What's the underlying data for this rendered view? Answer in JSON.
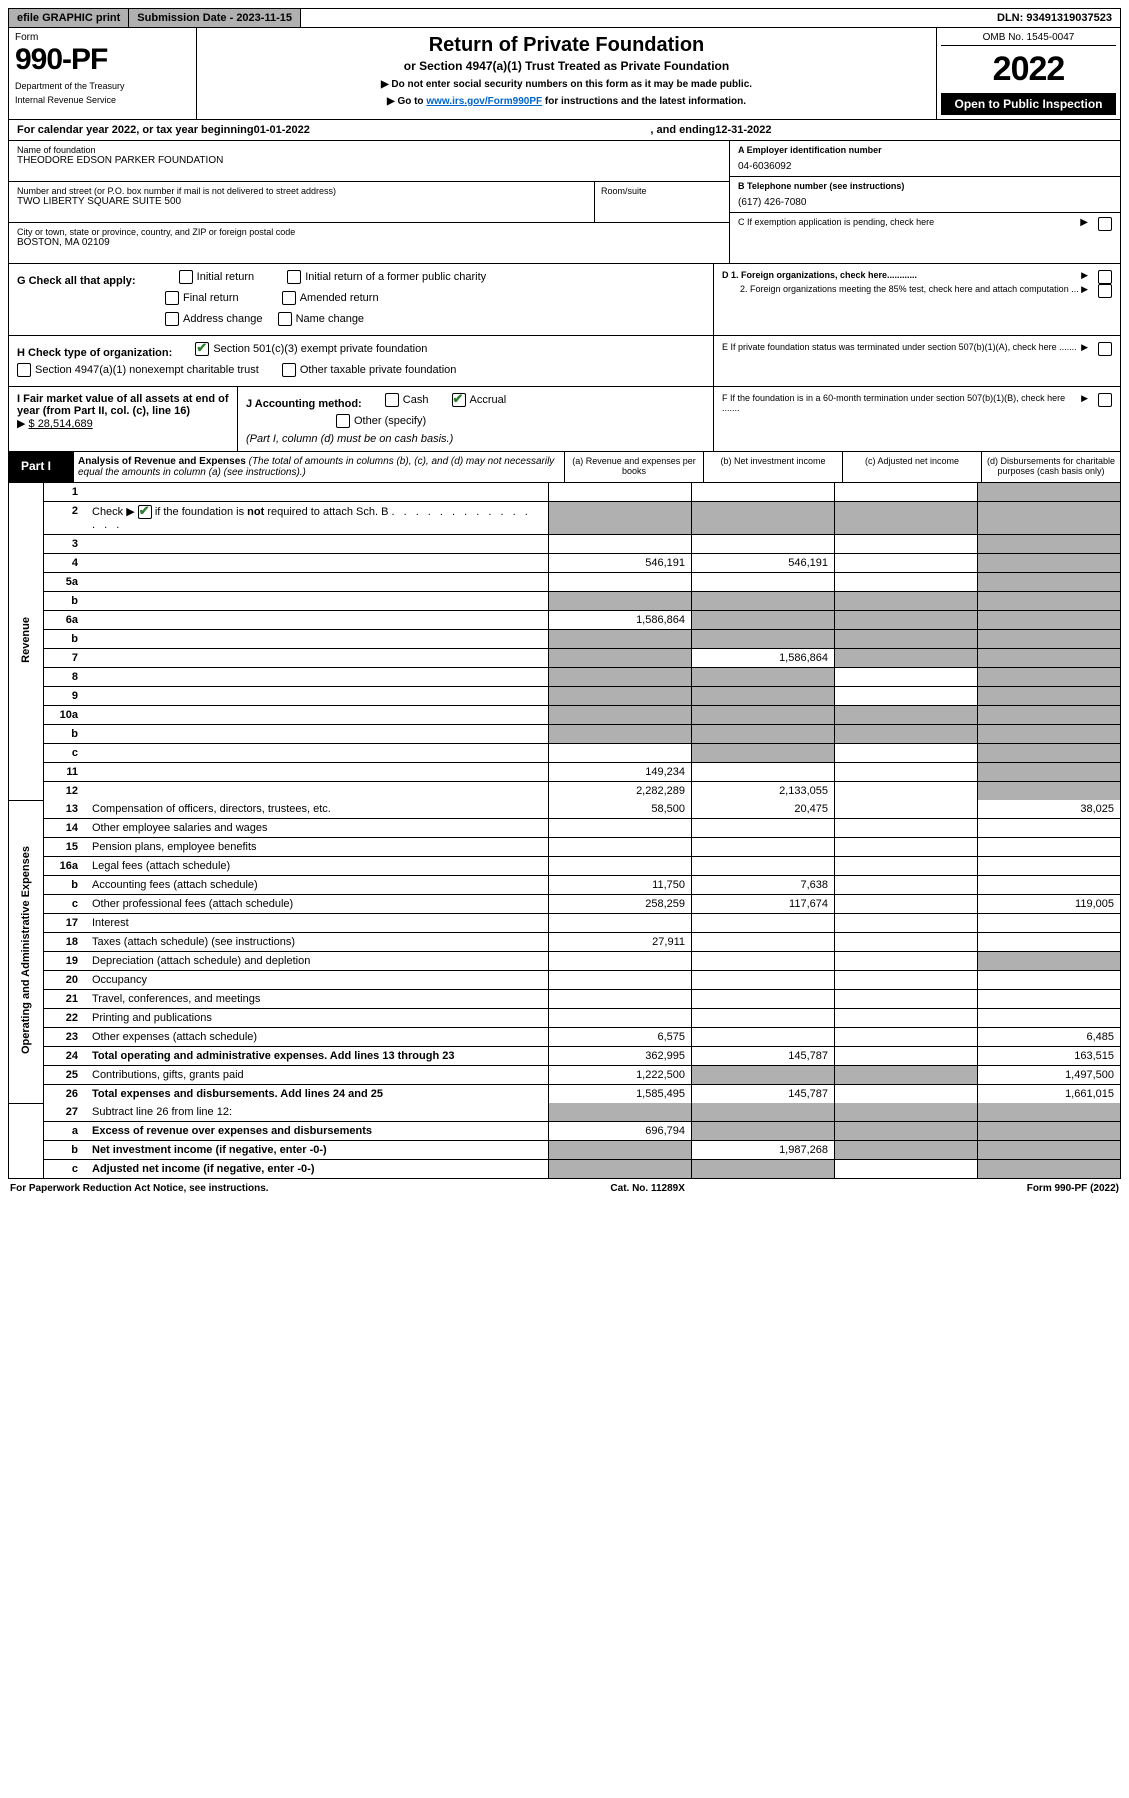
{
  "topbar": {
    "efile": "efile GRAPHIC print",
    "submission": "Submission Date - 2023-11-15",
    "dln": "DLN: 93491319037523"
  },
  "header": {
    "form_label": "Form",
    "form_number": "990-PF",
    "dept1": "Department of the Treasury",
    "dept2": "Internal Revenue Service",
    "title": "Return of Private Foundation",
    "subtitle": "or Section 4947(a)(1) Trust Treated as Private Foundation",
    "note1": "▶ Do not enter social security numbers on this form as it may be made public.",
    "note2_pre": "▶ Go to ",
    "note2_link": "www.irs.gov/Form990PF",
    "note2_post": " for instructions and the latest information.",
    "omb": "OMB No. 1545-0047",
    "year": "2022",
    "inspect": "Open to Public Inspection"
  },
  "calrow": {
    "pre": "For calendar year 2022, or tax year beginning ",
    "begin": "01-01-2022",
    "mid": ", and ending ",
    "end": "12-31-2022"
  },
  "id": {
    "name_label": "Name of foundation",
    "name": "THEODORE EDSON PARKER FOUNDATION",
    "addr_label": "Number and street (or P.O. box number if mail is not delivered to street address)",
    "addr": "TWO LIBERTY SQUARE SUITE 500",
    "room_label": "Room/suite",
    "city_label": "City or town, state or province, country, and ZIP or foreign postal code",
    "city": "BOSTON, MA  02109",
    "ein_label": "A Employer identification number",
    "ein": "04-6036092",
    "phone_label": "B Telephone number (see instructions)",
    "phone": "(617) 426-7080",
    "c_label": "C If exemption application is pending, check here",
    "d1": "D 1. Foreign organizations, check here............",
    "d2": "2. Foreign organizations meeting the 85% test, check here and attach computation ...",
    "e_label": "E  If private foundation status was terminated under section 507(b)(1)(A), check here .......",
    "f_label": "F  If the foundation is in a 60-month termination under section 507(b)(1)(B), check here .......",
    "g_label": "G Check all that apply:",
    "g_opts": [
      "Initial return",
      "Initial return of a former public charity",
      "Final return",
      "Amended return",
      "Address change",
      "Name change"
    ],
    "h_label": "H Check type of organization:",
    "h_opts": [
      "Section 501(c)(3) exempt private foundation",
      "Section 4947(a)(1) nonexempt charitable trust",
      "Other taxable private foundation"
    ],
    "i_label": "I Fair market value of all assets at end of year (from Part II, col. (c), line 16)",
    "i_value": "$  28,514,689",
    "j_label": "J Accounting method:",
    "j_opts": [
      "Cash",
      "Accrual"
    ],
    "j_other": "Other (specify)",
    "j_note": "(Part I, column (d) must be on cash basis.)"
  },
  "part1": {
    "label": "Part I",
    "title": "Analysis of Revenue and Expenses",
    "title_note": " (The total of amounts in columns (b), (c), and (d) may not necessarily equal the amounts in column (a) (see instructions).)",
    "col_a": "(a) Revenue and expenses per books",
    "col_b": "(b) Net investment income",
    "col_c": "(c) Adjusted net income",
    "col_d": "(d) Disbursements for charitable purposes (cash basis only)"
  },
  "side": {
    "revenue": "Revenue",
    "expenses": "Operating and Administrative Expenses"
  },
  "rows": [
    {
      "n": "1",
      "d": "",
      "a": "",
      "b": "",
      "c": "",
      "shade": [
        "d"
      ]
    },
    {
      "n": "2",
      "d": "",
      "a": "",
      "b": "",
      "c": "",
      "shade": [
        "a",
        "b",
        "c",
        "d"
      ],
      "check2": true
    },
    {
      "n": "3",
      "d": "",
      "a": "",
      "b": "",
      "c": "",
      "shade": [
        "d"
      ]
    },
    {
      "n": "4",
      "d": "",
      "a": "546,191",
      "b": "546,191",
      "c": "",
      "shade": [
        "d"
      ]
    },
    {
      "n": "5a",
      "d": "",
      "a": "",
      "b": "",
      "c": "",
      "shade": [
        "d"
      ]
    },
    {
      "n": "b",
      "d": "",
      "a": "",
      "b": "",
      "c": "",
      "shade": [
        "a",
        "b",
        "c",
        "d"
      ]
    },
    {
      "n": "6a",
      "d": "",
      "a": "1,586,864",
      "b": "",
      "c": "",
      "shade": [
        "b",
        "c",
        "d"
      ]
    },
    {
      "n": "b",
      "d": "",
      "a": "",
      "b": "",
      "c": "",
      "shade": [
        "a",
        "b",
        "c",
        "d"
      ]
    },
    {
      "n": "7",
      "d": "",
      "a": "",
      "b": "1,586,864",
      "c": "",
      "shade": [
        "a",
        "c",
        "d"
      ]
    },
    {
      "n": "8",
      "d": "",
      "a": "",
      "b": "",
      "c": "",
      "shade": [
        "a",
        "b",
        "d"
      ]
    },
    {
      "n": "9",
      "d": "",
      "a": "",
      "b": "",
      "c": "",
      "shade": [
        "a",
        "b",
        "d"
      ]
    },
    {
      "n": "10a",
      "d": "",
      "a": "",
      "b": "",
      "c": "",
      "shade": [
        "a",
        "b",
        "c",
        "d"
      ]
    },
    {
      "n": "b",
      "d": "",
      "a": "",
      "b": "",
      "c": "",
      "shade": [
        "a",
        "b",
        "c",
        "d"
      ]
    },
    {
      "n": "c",
      "d": "",
      "a": "",
      "b": "",
      "c": "",
      "shade": [
        "b",
        "d"
      ]
    },
    {
      "n": "11",
      "d": "",
      "a": "149,234",
      "b": "",
      "c": "",
      "shade": [
        "d"
      ]
    },
    {
      "n": "12",
      "d": "",
      "a": "2,282,289",
      "b": "2,133,055",
      "c": "",
      "shade": [
        "d"
      ],
      "bold": true
    }
  ],
  "exp_rows": [
    {
      "n": "13",
      "d": "Compensation of officers, directors, trustees, etc.",
      "a": "58,500",
      "b": "20,475",
      "c": "",
      "dd": "38,025"
    },
    {
      "n": "14",
      "d": "Other employee salaries and wages",
      "a": "",
      "b": "",
      "c": "",
      "dd": ""
    },
    {
      "n": "15",
      "d": "Pension plans, employee benefits",
      "a": "",
      "b": "",
      "c": "",
      "dd": ""
    },
    {
      "n": "16a",
      "d": "Legal fees (attach schedule)",
      "a": "",
      "b": "",
      "c": "",
      "dd": ""
    },
    {
      "n": "b",
      "d": "Accounting fees (attach schedule)",
      "a": "11,750",
      "b": "7,638",
      "c": "",
      "dd": ""
    },
    {
      "n": "c",
      "d": "Other professional fees (attach schedule)",
      "a": "258,259",
      "b": "117,674",
      "c": "",
      "dd": "119,005"
    },
    {
      "n": "17",
      "d": "Interest",
      "a": "",
      "b": "",
      "c": "",
      "dd": ""
    },
    {
      "n": "18",
      "d": "Taxes (attach schedule) (see instructions)",
      "a": "27,911",
      "b": "",
      "c": "",
      "dd": ""
    },
    {
      "n": "19",
      "d": "Depreciation (attach schedule) and depletion",
      "a": "",
      "b": "",
      "c": "",
      "dd": "",
      "shade": [
        "dd"
      ]
    },
    {
      "n": "20",
      "d": "Occupancy",
      "a": "",
      "b": "",
      "c": "",
      "dd": ""
    },
    {
      "n": "21",
      "d": "Travel, conferences, and meetings",
      "a": "",
      "b": "",
      "c": "",
      "dd": ""
    },
    {
      "n": "22",
      "d": "Printing and publications",
      "a": "",
      "b": "",
      "c": "",
      "dd": ""
    },
    {
      "n": "23",
      "d": "Other expenses (attach schedule)",
      "a": "6,575",
      "b": "",
      "c": "",
      "dd": "6,485"
    },
    {
      "n": "24",
      "d": "Total operating and administrative expenses. Add lines 13 through 23",
      "a": "362,995",
      "b": "145,787",
      "c": "",
      "dd": "163,515",
      "bold": true
    },
    {
      "n": "25",
      "d": "Contributions, gifts, grants paid",
      "a": "1,222,500",
      "b": "",
      "c": "",
      "dd": "1,497,500",
      "shade": [
        "b",
        "c"
      ]
    },
    {
      "n": "26",
      "d": "Total expenses and disbursements. Add lines 24 and 25",
      "a": "1,585,495",
      "b": "145,787",
      "c": "",
      "dd": "1,661,015",
      "bold": true
    }
  ],
  "final_rows": [
    {
      "n": "27",
      "d": "Subtract line 26 from line 12:",
      "a": "",
      "b": "",
      "c": "",
      "dd": "",
      "shade": [
        "a",
        "b",
        "c",
        "dd"
      ]
    },
    {
      "n": "a",
      "d": "Excess of revenue over expenses and disbursements",
      "a": "696,794",
      "b": "",
      "c": "",
      "dd": "",
      "shade": [
        "b",
        "c",
        "dd"
      ],
      "bold": true
    },
    {
      "n": "b",
      "d": "Net investment income (if negative, enter -0-)",
      "a": "",
      "b": "1,987,268",
      "c": "",
      "dd": "",
      "shade": [
        "a",
        "c",
        "dd"
      ],
      "bold": true
    },
    {
      "n": "c",
      "d": "Adjusted net income (if negative, enter -0-)",
      "a": "",
      "b": "",
      "c": "",
      "dd": "",
      "shade": [
        "a",
        "b",
        "dd"
      ],
      "bold": true
    }
  ],
  "footer": {
    "left": "For Paperwork Reduction Act Notice, see instructions.",
    "mid": "Cat. No. 11289X",
    "right": "Form 990-PF (2022)"
  }
}
